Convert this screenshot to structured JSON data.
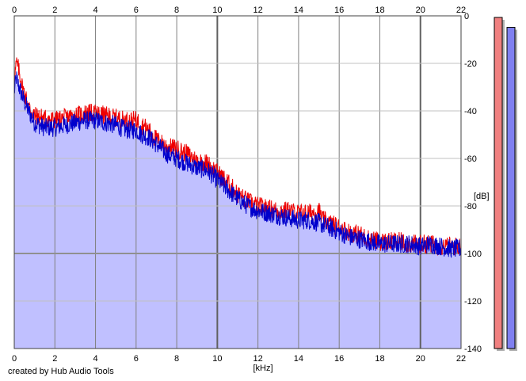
{
  "footer_text": "created by Hub Audio Tools",
  "colors": {
    "left_channel": "#ee0000",
    "right_channel": "#0000cc",
    "fill": "#c0c0ff",
    "grid_major": "#808080",
    "grid_minor": "#c0c0c0",
    "meter_left": "#f08080",
    "meter_right": "#8080f0"
  },
  "meters": {
    "left_level": 1.0,
    "right_level": 0.97
  },
  "chart_data": {
    "type": "line",
    "xlabel": "[kHz]",
    "ylabel": "[dB]",
    "xlim": [
      0,
      22
    ],
    "ylim": [
      -140,
      0
    ],
    "x_ticks": [
      "0",
      "2",
      "4",
      "6",
      "8",
      "10",
      "12",
      "14",
      "16",
      "18",
      "20",
      "22"
    ],
    "y_ticks": [
      "0",
      "-20",
      "-40",
      "-60",
      "-80",
      "-100",
      "-120",
      "-140"
    ],
    "grid": true,
    "series": [
      {
        "color": "#ee0000",
        "x": [
          0,
          0.1,
          0.2,
          0.4,
          0.7,
          1.0,
          1.5,
          2.0,
          2.5,
          3.0,
          3.5,
          4.0,
          4.5,
          5.0,
          5.5,
          6.0,
          6.3,
          6.6,
          7.0,
          7.5,
          8.0,
          8.5,
          9.0,
          9.5,
          10.0,
          10.5,
          11.0,
          11.5,
          12.0,
          12.5,
          13.0,
          13.5,
          14.0,
          14.5,
          15.0,
          15.2,
          15.5,
          16.0,
          16.5,
          17.0,
          17.5,
          18.0,
          18.5,
          19.0,
          19.5,
          20.0,
          20.5,
          21.0,
          21.5,
          22.0
        ],
        "values": [
          -27,
          -20,
          -22,
          -30,
          -38,
          -42,
          -43,
          -44,
          -43,
          -42,
          -41,
          -41,
          -42,
          -43,
          -44,
          -44,
          -46,
          -48,
          -52,
          -55,
          -56,
          -58,
          -61,
          -62,
          -66,
          -70,
          -75,
          -78,
          -80,
          -81,
          -82,
          -82,
          -83,
          -83,
          -82,
          -86,
          -87,
          -89,
          -91,
          -92,
          -94,
          -95,
          -95,
          -95,
          -96,
          -96,
          -96,
          -97,
          -97,
          -97
        ]
      },
      {
        "color": "#0000cc",
        "x": [
          0,
          0.1,
          0.2,
          0.4,
          0.7,
          1.0,
          1.5,
          2.0,
          2.5,
          3.0,
          3.5,
          4.0,
          4.5,
          5.0,
          5.5,
          6.0,
          6.3,
          6.6,
          7.0,
          7.5,
          8.0,
          8.5,
          9.0,
          9.5,
          10.0,
          10.5,
          11.0,
          11.5,
          12.0,
          12.5,
          13.0,
          13.5,
          14.0,
          14.5,
          15.0,
          15.2,
          15.5,
          16.0,
          16.5,
          17.0,
          17.5,
          18.0,
          18.5,
          19.0,
          19.5,
          20.0,
          20.5,
          21.0,
          21.5,
          22.0
        ],
        "values": [
          -32,
          -26,
          -29,
          -34,
          -40,
          -45,
          -47,
          -47,
          -46,
          -45,
          -44,
          -44,
          -45,
          -46,
          -48,
          -48,
          -50,
          -51,
          -54,
          -58,
          -60,
          -62,
          -64,
          -65,
          -69,
          -73,
          -77,
          -80,
          -82,
          -83,
          -84,
          -85,
          -86,
          -86,
          -87,
          -88,
          -89,
          -91,
          -93,
          -94,
          -95,
          -96,
          -96,
          -96,
          -96,
          -97,
          -96,
          -97,
          -98,
          -98
        ]
      }
    ]
  }
}
